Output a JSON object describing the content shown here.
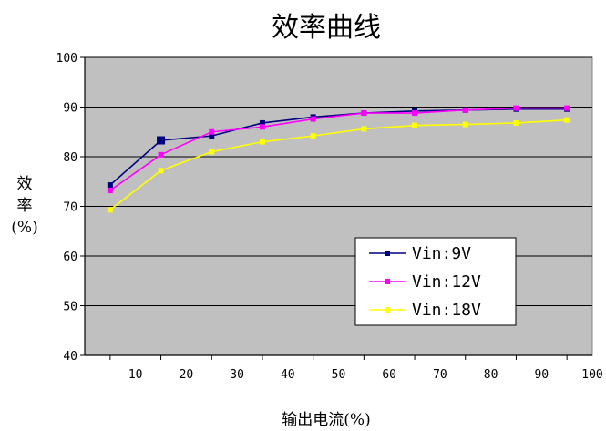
{
  "chart_data": {
    "type": "line",
    "title": "效率曲线",
    "xlabel": "输出电流(%)",
    "ylabel": "效率(%)",
    "xlim": [
      0,
      100
    ],
    "ylim": [
      40,
      100
    ],
    "x_ticks": [
      10,
      20,
      30,
      40,
      50,
      60,
      70,
      80,
      90,
      100
    ],
    "y_ticks": [
      40,
      50,
      60,
      70,
      80,
      90,
      100
    ],
    "grid": "horizontal",
    "plot_background": "#c0c0c0",
    "legend_position": "lower-right",
    "x": [
      5,
      15,
      25,
      35,
      45,
      55,
      65,
      75,
      85,
      95
    ],
    "series": [
      {
        "name": "Vin:9V",
        "color": "#000080",
        "marker": "square",
        "values": [
          74.3,
          83.3,
          84.2,
          86.8,
          88.0,
          88.8,
          89.2,
          89.4,
          89.6,
          89.6
        ]
      },
      {
        "name": "Vin:12V",
        "color": "#ff00ff",
        "marker": "square",
        "values": [
          73.2,
          80.4,
          85.0,
          86.0,
          87.6,
          88.8,
          88.8,
          89.4,
          89.8,
          89.8
        ]
      },
      {
        "name": "Vin:18V",
        "color": "#ffff00",
        "marker": "square",
        "values": [
          69.3,
          77.2,
          81.0,
          83.0,
          84.2,
          85.6,
          86.3,
          86.5,
          86.8,
          87.4
        ]
      }
    ]
  }
}
